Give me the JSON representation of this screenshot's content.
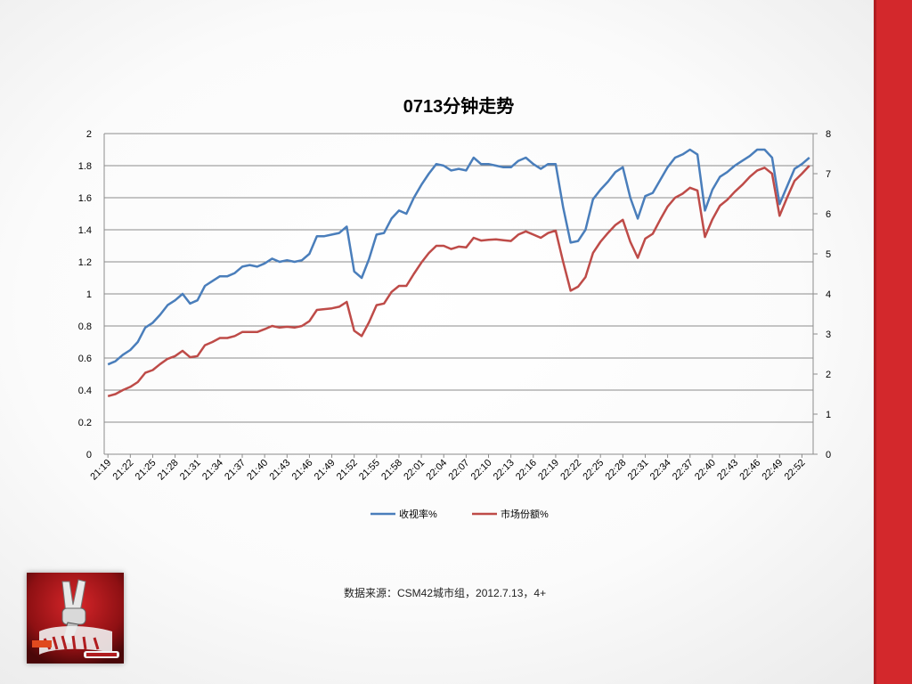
{
  "chart_data": {
    "type": "line",
    "title": "0713分钟走势",
    "x": [
      "21:19",
      "21:20",
      "21:21",
      "21:22",
      "21:23",
      "21:24",
      "21:25",
      "21:26",
      "21:27",
      "21:28",
      "21:29",
      "21:30",
      "21:31",
      "21:32",
      "21:33",
      "21:34",
      "21:35",
      "21:36",
      "21:37",
      "21:38",
      "21:39",
      "21:40",
      "21:41",
      "21:42",
      "21:43",
      "21:44",
      "21:45",
      "21:46",
      "21:47",
      "21:48",
      "21:49",
      "21:50",
      "21:51",
      "21:52",
      "21:53",
      "21:54",
      "21:55",
      "21:56",
      "21:57",
      "21:58",
      "21:59",
      "22:00",
      "22:01",
      "22:02",
      "22:03",
      "22:04",
      "22:05",
      "22:06",
      "22:07",
      "22:08",
      "22:09",
      "22:10",
      "22:11",
      "22:12",
      "22:13",
      "22:14",
      "22:15",
      "22:16",
      "22:17",
      "22:18",
      "22:19",
      "22:20",
      "22:21",
      "22:22",
      "22:23",
      "22:24",
      "22:25",
      "22:26",
      "22:27",
      "22:28",
      "22:29",
      "22:30",
      "22:31",
      "22:32",
      "22:33",
      "22:34",
      "22:35",
      "22:36",
      "22:37",
      "22:38",
      "22:39",
      "22:40",
      "22:41",
      "22:42",
      "22:43",
      "22:44",
      "22:45",
      "22:46",
      "22:47",
      "22:48",
      "22:49",
      "22:50",
      "22:51",
      "22:52",
      "22:53"
    ],
    "x_tick_labels": [
      "21:19",
      "21:22",
      "21:25",
      "21:28",
      "21:31",
      "21:34",
      "21:37",
      "21:40",
      "21:43",
      "21:46",
      "21:49",
      "21:52",
      "21:55",
      "21:58",
      "22:01",
      "22:04",
      "22:07",
      "22:10",
      "22:13",
      "22:16",
      "22:19",
      "22:22",
      "22:25",
      "22:28",
      "22:31",
      "22:34",
      "22:37",
      "22:40",
      "22:43",
      "22:46",
      "22:49",
      "22:52"
    ],
    "y_left": {
      "ticks": [
        "0",
        "0.2",
        "0.4",
        "0.6",
        "0.8",
        "1",
        "1.2",
        "1.4",
        "1.6",
        "1.8",
        "2"
      ],
      "min": 0,
      "max": 2
    },
    "y_right": {
      "ticks": [
        "0",
        "1",
        "2",
        "3",
        "4",
        "5",
        "6",
        "7",
        "8"
      ],
      "min": 0,
      "max": 8
    },
    "grid": true,
    "legend_position": "bottom",
    "series": [
      {
        "name": "收视率%",
        "axis": "left",
        "color": "#4a7ebb",
        "values": [
          0.56,
          0.58,
          0.62,
          0.65,
          0.7,
          0.79,
          0.82,
          0.87,
          0.93,
          0.96,
          1.0,
          0.94,
          0.96,
          1.05,
          1.08,
          1.11,
          1.11,
          1.13,
          1.17,
          1.18,
          1.17,
          1.19,
          1.22,
          1.2,
          1.21,
          1.2,
          1.21,
          1.25,
          1.36,
          1.36,
          1.37,
          1.38,
          1.42,
          1.14,
          1.1,
          1.22,
          1.37,
          1.38,
          1.47,
          1.52,
          1.5,
          1.6,
          1.68,
          1.75,
          1.81,
          1.8,
          1.77,
          1.78,
          1.77,
          1.85,
          1.81,
          1.81,
          1.8,
          1.79,
          1.79,
          1.83,
          1.85,
          1.81,
          1.78,
          1.81,
          1.81,
          1.54,
          1.32,
          1.33,
          1.4,
          1.59,
          1.65,
          1.7,
          1.76,
          1.79,
          1.6,
          1.47,
          1.61,
          1.63,
          1.71,
          1.79,
          1.85,
          1.87,
          1.9,
          1.87,
          1.52,
          1.65,
          1.73,
          1.76,
          1.8,
          1.83,
          1.86,
          1.9,
          1.9,
          1.85,
          1.56,
          1.67,
          1.78,
          1.81,
          1.85
        ]
      },
      {
        "name": "市场份额%",
        "axis": "right",
        "color": "#be4b48",
        "values": [
          1.45,
          1.5,
          1.6,
          1.68,
          1.8,
          2.03,
          2.1,
          2.25,
          2.38,
          2.45,
          2.58,
          2.42,
          2.45,
          2.72,
          2.8,
          2.9,
          2.9,
          2.95,
          3.05,
          3.05,
          3.05,
          3.12,
          3.2,
          3.16,
          3.18,
          3.16,
          3.2,
          3.32,
          3.6,
          3.62,
          3.64,
          3.68,
          3.8,
          3.08,
          2.95,
          3.3,
          3.72,
          3.76,
          4.05,
          4.2,
          4.2,
          4.5,
          4.78,
          5.02,
          5.2,
          5.2,
          5.12,
          5.18,
          5.16,
          5.4,
          5.33,
          5.35,
          5.36,
          5.34,
          5.32,
          5.48,
          5.56,
          5.48,
          5.4,
          5.52,
          5.58,
          4.8,
          4.08,
          4.18,
          4.42,
          5.02,
          5.3,
          5.52,
          5.72,
          5.85,
          5.3,
          4.9,
          5.38,
          5.5,
          5.85,
          6.18,
          6.4,
          6.5,
          6.65,
          6.58,
          5.42,
          5.86,
          6.2,
          6.35,
          6.55,
          6.72,
          6.92,
          7.08,
          7.15,
          7.0,
          5.95,
          6.4,
          6.82,
          7.0,
          7.2
        ]
      }
    ]
  },
  "footer": {
    "source": "数据来源：CSM42城市组，2012.7.13，4+"
  }
}
